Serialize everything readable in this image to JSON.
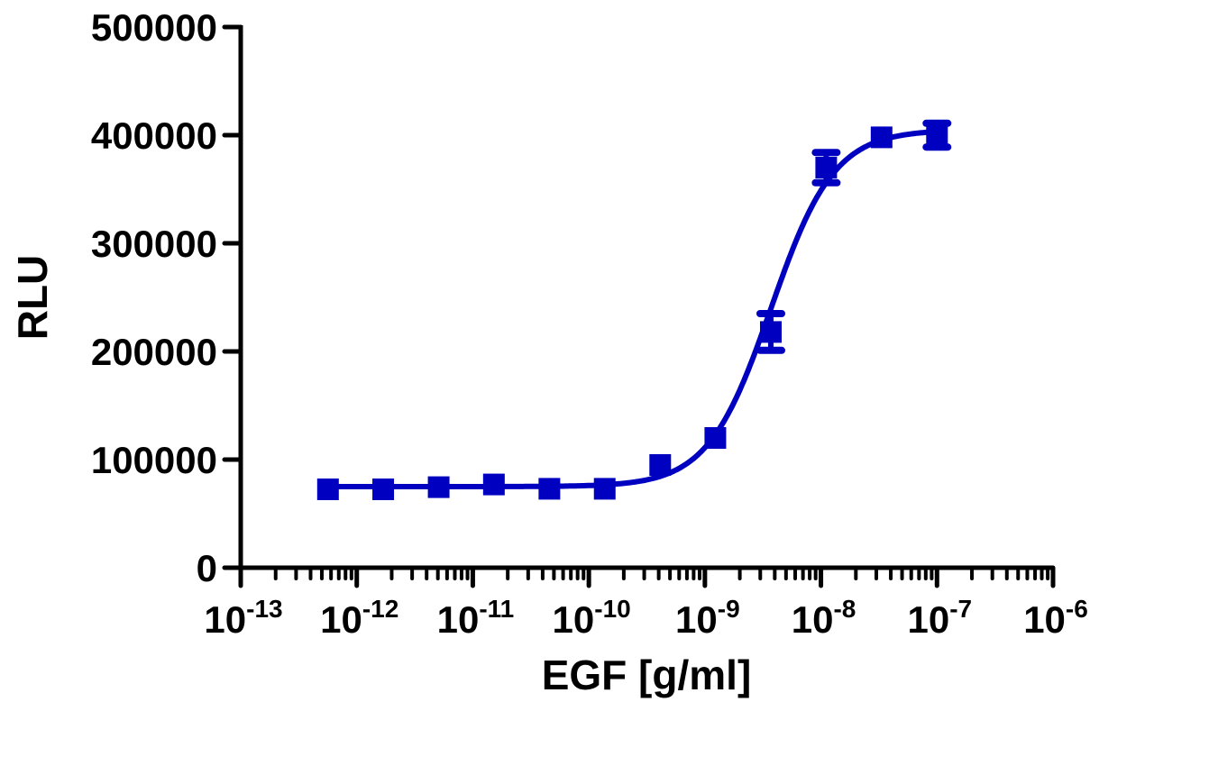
{
  "chart_data": {
    "type": "scatter",
    "title": "",
    "xlabel": "EGF [g/ml]",
    "ylabel": "RLU",
    "x_scale": "log",
    "xlim": [
      1e-13,
      1e-06
    ],
    "ylim": [
      0,
      500000
    ],
    "x_tick_labels": [
      {
        "base": "10",
        "exp": "-13"
      },
      {
        "base": "10",
        "exp": "-12"
      },
      {
        "base": "10",
        "exp": "-11"
      },
      {
        "base": "10",
        "exp": "-10"
      },
      {
        "base": "10",
        "exp": "-9"
      },
      {
        "base": "10",
        "exp": "-8"
      },
      {
        "base": "10",
        "exp": "-7"
      },
      {
        "base": "10",
        "exp": "-6"
      }
    ],
    "y_tick_labels": [
      "0",
      "100000",
      "200000",
      "300000",
      "400000",
      "500000"
    ],
    "grid": false,
    "color": "#0000c0",
    "points": [
      {
        "x": 5.65e-13,
        "y": 72500,
        "err": 0
      },
      {
        "x": 1.69e-12,
        "y": 72500,
        "err": 0
      },
      {
        "x": 5.08e-12,
        "y": 74500,
        "err": 0
      },
      {
        "x": 1.52e-11,
        "y": 77000,
        "err": 0
      },
      {
        "x": 4.57e-11,
        "y": 73000,
        "err": 0
      },
      {
        "x": 1.37e-10,
        "y": 73000,
        "err": 0
      },
      {
        "x": 4.12e-10,
        "y": 95000,
        "err": 0
      },
      {
        "x": 1.23e-09,
        "y": 120000,
        "err": 0
      },
      {
        "x": 3.7e-09,
        "y": 218000,
        "err": 17000
      },
      {
        "x": 1.11e-08,
        "y": 370000,
        "err": 14000
      },
      {
        "x": 3.33e-08,
        "y": 398000,
        "err": 0
      },
      {
        "x": 1e-07,
        "y": 400000,
        "err": 11000
      }
    ],
    "fit": {
      "model": "4PL",
      "bottom": 75000,
      "top": 405000,
      "logEC50": -8.43,
      "hill": 1.6
    }
  }
}
